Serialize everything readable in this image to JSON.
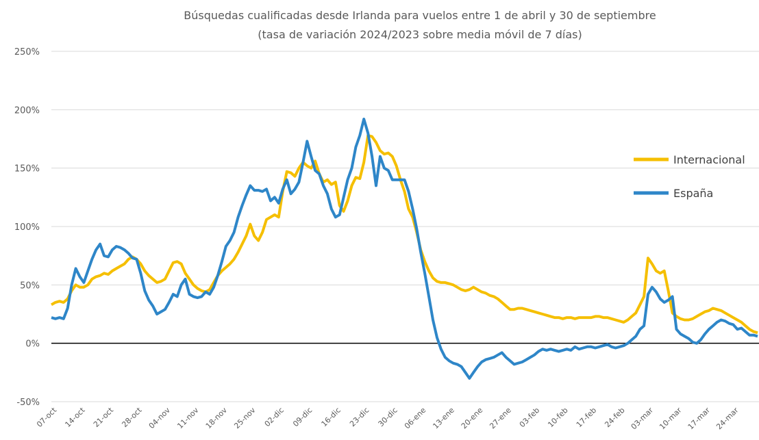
{
  "chart_data": {
    "type": "line",
    "title": "Búsquedas cualificadas desde Irlanda para vuelos entre 1 de abril y 30 de septiembre",
    "subtitle": "(tasa de variación 2024/2023 sobre media móvil de 7 días)",
    "categories": [
      "07-oct",
      null,
      null,
      null,
      null,
      null,
      null,
      "14-oct",
      null,
      null,
      null,
      null,
      null,
      null,
      "21-oct",
      null,
      null,
      null,
      null,
      null,
      null,
      "28-oct",
      null,
      null,
      null,
      null,
      null,
      null,
      "04-nov",
      null,
      null,
      null,
      null,
      null,
      null,
      "11-nov",
      null,
      null,
      null,
      null,
      null,
      null,
      "18-nov",
      null,
      null,
      null,
      null,
      null,
      null,
      "25-nov",
      null,
      null,
      null,
      null,
      null,
      null,
      "02-dic",
      null,
      null,
      null,
      null,
      null,
      null,
      "09-dic",
      null,
      null,
      null,
      null,
      null,
      null,
      "16-dic",
      null,
      null,
      null,
      null,
      null,
      null,
      "23-dic",
      null,
      null,
      null,
      null,
      null,
      null,
      "30-dic",
      null,
      null,
      null,
      null,
      null,
      null,
      "06-ene",
      null,
      null,
      null,
      null,
      null,
      null,
      "13-ene",
      null,
      null,
      null,
      null,
      null,
      null,
      "20-ene",
      null,
      null,
      null,
      null,
      null,
      null,
      "27-ene",
      null,
      null,
      null,
      null,
      null,
      null,
      "03-feb",
      null,
      null,
      null,
      null,
      null,
      null,
      "10-feb",
      null,
      null,
      null,
      null,
      null,
      null,
      "17-feb",
      null,
      null,
      null,
      null,
      null,
      null,
      "24-feb",
      null,
      null,
      null,
      null,
      null,
      null,
      "03-mar",
      null,
      null,
      null,
      null,
      null,
      null,
      "10-mar",
      null,
      null,
      null,
      null,
      null,
      null,
      "17-mar",
      null,
      null,
      null,
      null,
      null,
      null,
      "24-mar",
      null,
      null,
      null,
      null,
      null,
      null
    ],
    "series": [
      {
        "name": "Internacional",
        "color": "#f5bf00",
        "values": [
          33,
          35,
          36,
          35,
          38,
          45,
          50,
          48,
          48,
          50,
          55,
          57,
          58,
          60,
          59,
          62,
          64,
          66,
          68,
          72,
          74,
          72,
          68,
          62,
          58,
          55,
          52,
          53,
          55,
          62,
          69,
          70,
          68,
          60,
          55,
          50,
          47,
          45,
          44,
          46,
          52,
          58,
          62,
          65,
          68,
          72,
          78,
          85,
          92,
          102,
          92,
          88,
          95,
          106,
          108,
          110,
          108,
          130,
          147,
          146,
          143,
          150,
          155,
          152,
          150,
          156,
          145,
          138,
          140,
          136,
          138,
          118,
          113,
          122,
          135,
          142,
          141,
          155,
          178,
          177,
          172,
          165,
          162,
          163,
          160,
          152,
          140,
          130,
          115,
          108,
          95,
          80,
          70,
          62,
          56,
          53,
          52,
          52,
          51,
          50,
          48,
          46,
          45,
          46,
          48,
          46,
          44,
          43,
          41,
          40,
          38,
          35,
          32,
          29,
          29,
          30,
          30,
          29,
          28,
          27,
          26,
          25,
          24,
          23,
          22,
          22,
          21,
          22,
          22,
          21,
          22,
          22,
          22,
          22,
          23,
          23,
          22,
          22,
          21,
          20,
          19,
          18,
          20,
          23,
          26,
          33,
          40,
          73,
          68,
          62,
          60,
          62,
          45,
          26,
          23,
          21,
          20,
          20,
          21,
          23,
          25,
          27,
          28,
          30,
          29,
          28,
          26,
          24,
          22,
          20,
          18,
          15,
          12,
          10,
          9
        ]
      },
      {
        "name": "España",
        "color": "#2e86c8",
        "values": [
          22,
          21,
          22,
          21,
          30,
          50,
          64,
          57,
          52,
          62,
          72,
          80,
          85,
          75,
          74,
          80,
          83,
          82,
          80,
          77,
          73,
          72,
          60,
          45,
          37,
          32,
          25,
          27,
          29,
          35,
          42,
          40,
          50,
          55,
          42,
          40,
          39,
          40,
          44,
          42,
          48,
          58,
          70,
          83,
          88,
          95,
          108,
          118,
          127,
          135,
          131,
          131,
          130,
          132,
          122,
          125,
          120,
          132,
          140,
          128,
          132,
          138,
          155,
          173,
          160,
          148,
          145,
          135,
          128,
          115,
          108,
          110,
          125,
          140,
          150,
          168,
          178,
          192,
          180,
          160,
          135,
          160,
          150,
          148,
          140,
          140,
          140,
          140,
          130,
          115,
          98,
          78,
          60,
          40,
          20,
          5,
          -5,
          -12,
          -15,
          -17,
          -18,
          -20,
          -25,
          -30,
          -25,
          -20,
          -16,
          -14,
          -13,
          -12,
          -10,
          -8,
          -12,
          -15,
          -18,
          -17,
          -16,
          -14,
          -12,
          -10,
          -7,
          -5,
          -6,
          -5,
          -6,
          -7,
          -6,
          -5,
          -6,
          -3,
          -5,
          -4,
          -3,
          -3,
          -4,
          -3,
          -2,
          -1,
          -3,
          -4,
          -3,
          -2,
          0,
          3,
          6,
          12,
          15,
          42,
          48,
          44,
          38,
          35,
          37,
          40,
          12,
          8,
          6,
          4,
          1,
          0,
          3,
          8,
          12,
          15,
          18,
          20,
          19,
          17,
          16,
          12,
          13,
          10,
          7,
          7,
          6
        ]
      }
    ],
    "ylim": [
      -50,
      250
    ],
    "yticks": [
      {
        "value": -50,
        "label": "-50%"
      },
      {
        "value": 0,
        "label": "0%"
      },
      {
        "value": 50,
        "label": "50%"
      },
      {
        "value": 100,
        "label": "100%"
      },
      {
        "value": 150,
        "label": "150%"
      },
      {
        "value": 200,
        "label": "200%"
      },
      {
        "value": 250,
        "label": "250%"
      }
    ],
    "grid": true,
    "legend": "right"
  }
}
